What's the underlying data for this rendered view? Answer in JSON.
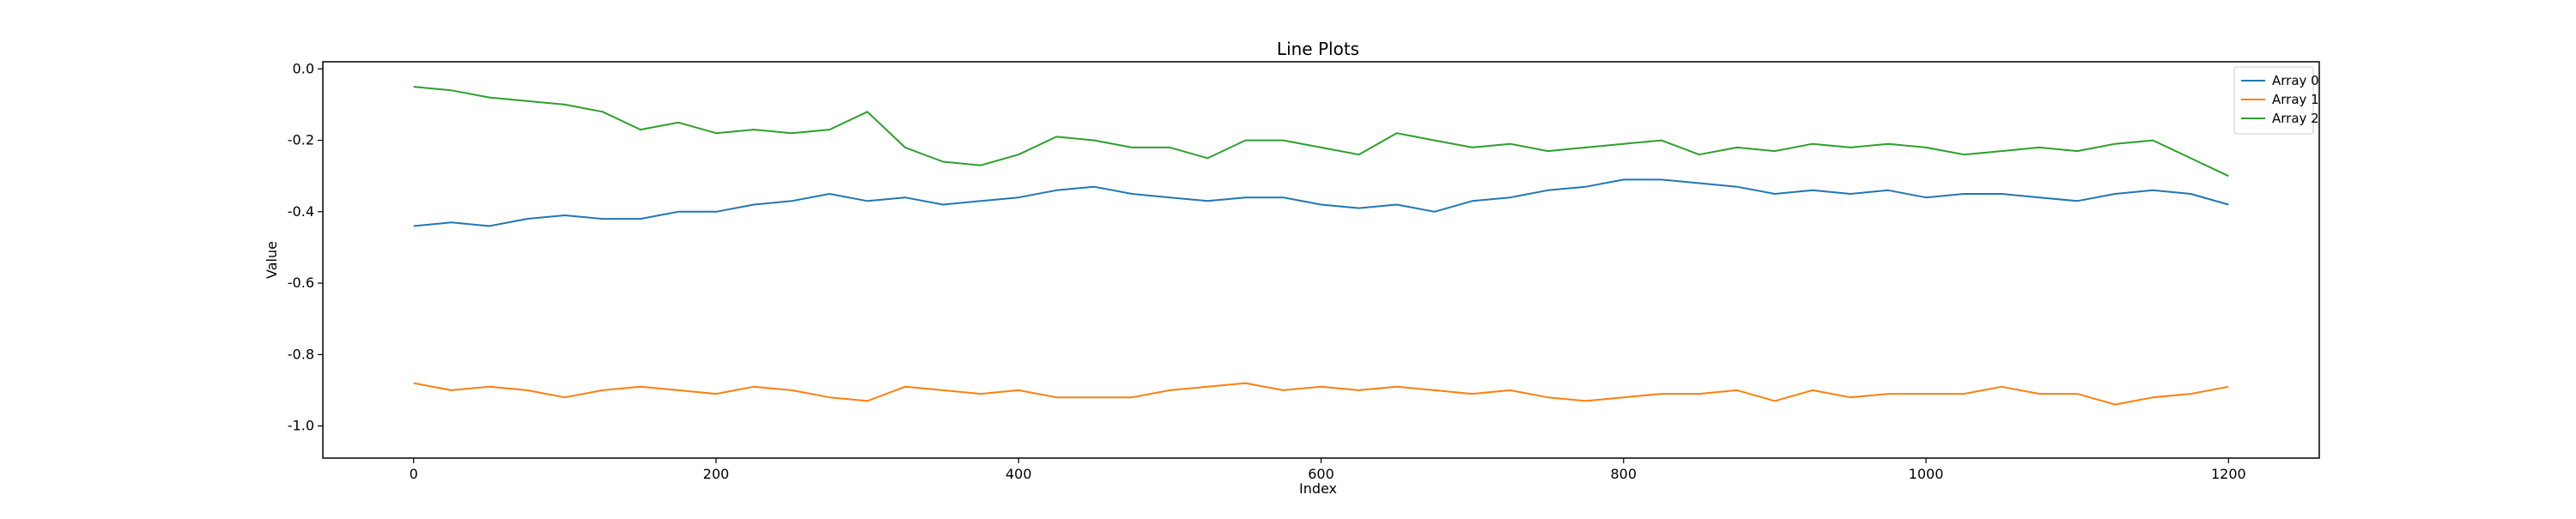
{
  "chart_data": {
    "type": "line",
    "title": "Line Plots",
    "xlabel": "Index",
    "ylabel": "Value",
    "xlim": [
      -60,
      1260
    ],
    "ylim": [
      -1.09,
      0.02
    ],
    "xticks": [
      0,
      200,
      400,
      600,
      800,
      1000,
      1200
    ],
    "yticks": [
      0.0,
      -0.2,
      -0.4,
      -0.6,
      -0.8,
      -1.0
    ],
    "ytick_labels": [
      "0.0",
      "-0.2",
      "-0.4",
      "-0.6",
      "-0.8",
      "-1.0"
    ],
    "grid": false,
    "legend_position": "top-right",
    "colors": [
      "#1f77b4",
      "#ff7f0e",
      "#2ca02c"
    ],
    "series": [
      {
        "name": "Array 0",
        "color": "#1f77b4",
        "x": [
          0,
          25,
          50,
          75,
          100,
          125,
          150,
          175,
          200,
          225,
          250,
          275,
          300,
          325,
          350,
          375,
          400,
          425,
          450,
          475,
          500,
          525,
          550,
          575,
          600,
          625,
          650,
          675,
          700,
          725,
          750,
          775,
          800,
          825,
          850,
          875,
          900,
          925,
          950,
          975,
          1000,
          1025,
          1050,
          1075,
          1100,
          1125,
          1150,
          1175,
          1200
        ],
        "values": [
          -0.44,
          -0.43,
          -0.44,
          -0.42,
          -0.41,
          -0.42,
          -0.42,
          -0.4,
          -0.4,
          -0.38,
          -0.37,
          -0.35,
          -0.37,
          -0.36,
          -0.38,
          -0.37,
          -0.36,
          -0.34,
          -0.33,
          -0.35,
          -0.36,
          -0.37,
          -0.36,
          -0.36,
          -0.38,
          -0.39,
          -0.38,
          -0.4,
          -0.37,
          -0.36,
          -0.34,
          -0.33,
          -0.31,
          -0.31,
          -0.32,
          -0.33,
          -0.35,
          -0.34,
          -0.35,
          -0.34,
          -0.36,
          -0.35,
          -0.35,
          -0.36,
          -0.37,
          -0.35,
          -0.34,
          -0.35,
          -0.38
        ]
      },
      {
        "name": "Array 1",
        "color": "#ff7f0e",
        "x": [
          0,
          25,
          50,
          75,
          100,
          125,
          150,
          175,
          200,
          225,
          250,
          275,
          300,
          325,
          350,
          375,
          400,
          425,
          450,
          475,
          500,
          525,
          550,
          575,
          600,
          625,
          650,
          675,
          700,
          725,
          750,
          775,
          800,
          825,
          850,
          875,
          900,
          925,
          950,
          975,
          1000,
          1025,
          1050,
          1075,
          1100,
          1125,
          1150,
          1175,
          1200
        ],
        "values": [
          -0.88,
          -0.9,
          -0.89,
          -0.9,
          -0.92,
          -0.9,
          -0.89,
          -0.9,
          -0.91,
          -0.89,
          -0.9,
          -0.92,
          -0.93,
          -0.89,
          -0.9,
          -0.91,
          -0.9,
          -0.92,
          -0.92,
          -0.92,
          -0.9,
          -0.89,
          -0.88,
          -0.9,
          -0.89,
          -0.9,
          -0.89,
          -0.9,
          -0.91,
          -0.9,
          -0.92,
          -0.93,
          -0.92,
          -0.91,
          -0.91,
          -0.9,
          -0.93,
          -0.9,
          -0.92,
          -0.91,
          -0.91,
          -0.91,
          -0.89,
          -0.91,
          -0.91,
          -0.94,
          -0.92,
          -0.91,
          -0.89
        ]
      },
      {
        "name": "Array 2",
        "color": "#2ca02c",
        "x": [
          0,
          25,
          50,
          75,
          100,
          125,
          150,
          175,
          200,
          225,
          250,
          275,
          300,
          325,
          350,
          375,
          400,
          425,
          450,
          475,
          500,
          525,
          550,
          575,
          600,
          625,
          650,
          675,
          700,
          725,
          750,
          775,
          800,
          825,
          850,
          875,
          900,
          925,
          950,
          975,
          1000,
          1025,
          1050,
          1075,
          1100,
          1125,
          1150,
          1175,
          1200
        ],
        "values": [
          -0.05,
          -0.06,
          -0.08,
          -0.09,
          -0.1,
          -0.12,
          -0.17,
          -0.15,
          -0.18,
          -0.17,
          -0.18,
          -0.17,
          -0.12,
          -0.22,
          -0.26,
          -0.27,
          -0.24,
          -0.19,
          -0.2,
          -0.22,
          -0.22,
          -0.25,
          -0.2,
          -0.2,
          -0.22,
          -0.24,
          -0.18,
          -0.2,
          -0.22,
          -0.21,
          -0.23,
          -0.22,
          -0.21,
          -0.2,
          -0.24,
          -0.22,
          -0.23,
          -0.21,
          -0.22,
          -0.21,
          -0.22,
          -0.24,
          -0.23,
          -0.22,
          -0.23,
          -0.21,
          -0.2,
          -0.25,
          -0.3
        ]
      }
    ]
  }
}
